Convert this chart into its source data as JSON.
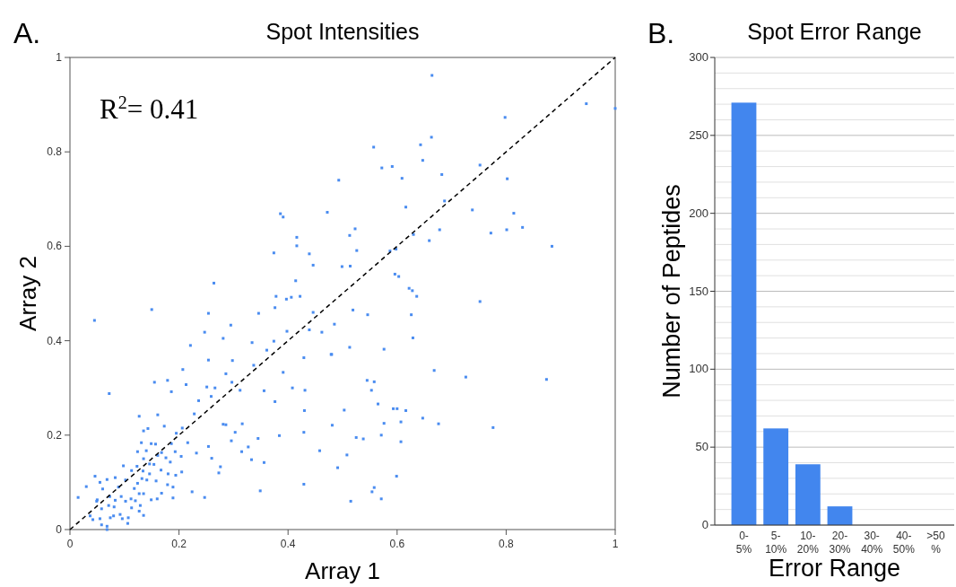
{
  "chart_data": [
    {
      "type": "scatter",
      "title": "Spot Intensities",
      "xlabel": "Array 1",
      "ylabel": "Array 2",
      "annotations": [
        "A.",
        "R$^{2}$= 0.41"
      ],
      "xlim": [
        0,
        1
      ],
      "ylim": [
        0,
        1
      ],
      "xticks": [
        0,
        0.2,
        0.4,
        0.6,
        0.8,
        1
      ],
      "yticks": [
        0,
        0.2,
        0.4,
        0.6,
        0.8,
        1
      ],
      "grid": false,
      "series": [
        {
          "type": "scatter",
          "marker": "square",
          "color": "#4a8cf0",
          "x": [
            0.664,
            0.947,
            1.0,
            0.798,
            0.663,
            0.557,
            0.643,
            0.647,
            0.572,
            0.591,
            0.493,
            0.609,
            0.752,
            0.682,
            0.802,
            0.616,
            0.687,
            0.738,
            0.814,
            0.386,
            0.391,
            0.472,
            0.416,
            0.416,
            0.523,
            0.513,
            0.63,
            0.678,
            0.772,
            0.801,
            0.83,
            0.659,
            0.374,
            0.439,
            0.526,
            0.587,
            0.598,
            0.884,
            0.446,
            0.499,
            0.514,
            0.603,
            0.414,
            0.264,
            0.628,
            0.596,
            0.622,
            0.636,
            0.752,
            0.519,
            0.546,
            0.626,
            0.485,
            0.629,
            0.513,
            0.576,
            0.668,
            0.726,
            0.874,
            0.545,
            0.558,
            0.553,
            0.565,
            0.503,
            0.593,
            0.6,
            0.616,
            0.647,
            0.576,
            0.607,
            0.676,
            0.776,
            0.481,
            0.525,
            0.538,
            0.571,
            0.607,
            0.508,
            0.491,
            0.599,
            0.558,
            0.554,
            0.571,
            0.515,
            0.48,
            0.045,
            0.15,
            0.378,
            0.397,
            0.406,
            0.422,
            0.376,
            0.346,
            0.254,
            0.446,
            0.295,
            0.247,
            0.281,
            0.221,
            0.334,
            0.374,
            0.398,
            0.439,
            0.462,
            0.254,
            0.298,
            0.337,
            0.361,
            0.429,
            0.479,
            0.207,
            0.286,
            0.155,
            0.179,
            0.213,
            0.186,
            0.072,
            0.251,
            0.266,
            0.297,
            0.312,
            0.356,
            0.376,
            0.391,
            0.408,
            0.431,
            0.161,
            0.127,
            0.228,
            0.259,
            0.236,
            0.281,
            0.316,
            0.384,
            0.429,
            0.43,
            0.458,
            0.429,
            0.349,
            0.247,
            0.224,
            0.189,
            0.273,
            0.276,
            0.26,
            0.254,
            0.232,
            0.296,
            0.315,
            0.327,
            0.345,
            0.333,
            0.356,
            0.303,
            0.286,
            0.206,
            0.195,
            0.173,
            0.143,
            0.135,
            0.131,
            0.149,
            0.157,
            0.186,
            0.216,
            0.193,
            0.168,
            0.14,
            0.124,
            0.135,
            0.161,
            0.176,
            0.204,
            0.184,
            0.154,
            0.146,
            0.123,
            0.098,
            0.113,
            0.134,
            0.146,
            0.167,
            0.18,
            0.194,
            0.205,
            0.179,
            0.158,
            0.141,
            0.132,
            0.118,
            0.124,
            0.102,
            0.083,
            0.068,
            0.046,
            0.055,
            0.06,
            0.089,
            0.073,
            0.05,
            0.03,
            0.015,
            0.037,
            0.042,
            0.055,
            0.058,
            0.068,
            0.068,
            0.074,
            0.08,
            0.092,
            0.096,
            0.106,
            0.107,
            0.113,
            0.102,
            0.094,
            0.081,
            0.071,
            0.058,
            0.049,
            0.083,
            0.112,
            0.129,
            0.135,
            0.127,
            0.12,
            0.135,
            0.149,
            0.16,
            0.168,
            0.189,
            0.127
          ],
          "values": [
            0.962,
            0.902,
            0.892,
            0.873,
            0.831,
            0.81,
            0.815,
            0.782,
            0.766,
            0.769,
            0.74,
            0.744,
            0.772,
            0.752,
            0.743,
            0.683,
            0.696,
            0.677,
            0.67,
            0.669,
            0.662,
            0.672,
            0.619,
            0.601,
            0.637,
            0.623,
            0.625,
            0.635,
            0.628,
            0.635,
            0.64,
            0.612,
            0.586,
            0.584,
            0.591,
            0.59,
            0.594,
            0.6,
            0.56,
            0.557,
            0.558,
            0.536,
            0.527,
            0.522,
            0.506,
            0.541,
            0.511,
            0.494,
            0.483,
            0.465,
            0.455,
            0.455,
            0.435,
            0.406,
            0.386,
            0.382,
            0.337,
            0.323,
            0.318,
            0.316,
            0.313,
            0.295,
            0.266,
            0.253,
            0.256,
            0.256,
            0.252,
            0.236,
            0.225,
            0.228,
            0.224,
            0.216,
            0.221,
            0.195,
            0.192,
            0.2,
            0.186,
            0.158,
            0.131,
            0.113,
            0.089,
            0.08,
            0.065,
            0.06,
            0.371,
            0.443,
            0.466,
            0.494,
            0.488,
            0.492,
            0.494,
            0.47,
            0.458,
            0.458,
            0.46,
            0.433,
            0.418,
            0.405,
            0.39,
            0.396,
            0.399,
            0.42,
            0.423,
            0.418,
            0.359,
            0.358,
            0.348,
            0.38,
            0.364,
            0.371,
            0.339,
            0.33,
            0.312,
            0.316,
            0.307,
            0.292,
            0.288,
            0.302,
            0.3,
            0.312,
            0.295,
            0.294,
            0.271,
            0.333,
            0.3,
            0.295,
            0.243,
            0.24,
            0.245,
            0.282,
            0.273,
            0.223,
            0.224,
            0.199,
            0.206,
            0.252,
            0.167,
            0.096,
            0.082,
            0.068,
            0.08,
            0.067,
            0.12,
            0.133,
            0.151,
            0.176,
            0.162,
            0.188,
            0.165,
            0.175,
            0.193,
            0.148,
            0.142,
            0.206,
            0.222,
            0.215,
            0.204,
            0.219,
            0.214,
            0.209,
            0.184,
            0.182,
            0.181,
            0.182,
            0.184,
            0.165,
            0.163,
            0.167,
            0.165,
            0.15,
            0.157,
            0.152,
            0.155,
            0.143,
            0.138,
            0.139,
            0.134,
            0.135,
            0.125,
            0.124,
            0.118,
            0.126,
            0.118,
            0.115,
            0.122,
            0.095,
            0.103,
            0.105,
            0.108,
            0.087,
            0.098,
            0.105,
            0.11,
            0.106,
            0.113,
            0.1,
            0.086,
            0.09,
            0.07,
            0.063,
            0.091,
            0.068,
            0.029,
            0.021,
            0.023,
            0.01,
            0.0,
            0.007,
            0.025,
            0.029,
            0.032,
            0.023,
            0.013,
            0.025,
            0.046,
            0.06,
            0.07,
            0.048,
            0.051,
            0.044,
            0.06,
            0.062,
            0.065,
            0.051,
            0.03,
            0.039,
            0.061,
            0.076,
            0.063,
            0.065,
            0.077,
            0.09,
            0.076
          ]
        },
        {
          "type": "line",
          "color": "#000000",
          "line_style": "dashed",
          "x": [
            0,
            1
          ],
          "values": [
            0,
            1
          ]
        }
      ]
    },
    {
      "type": "bar",
      "title": "Spot Error Range",
      "xlabel": "Error Range",
      "ylabel": "Number of Peptides",
      "annotations": [
        "B."
      ],
      "categories": [
        "0-5%",
        "5-10%",
        "10-20%",
        "20-30%",
        "30-40%",
        "40-50%",
        ">50%"
      ],
      "values": [
        271,
        62,
        39,
        12,
        0,
        0,
        0
      ],
      "color": "#4286ee",
      "ylim": [
        0,
        300
      ],
      "grid": "y",
      "yticks": [
        0,
        {
          "value": 10,
          "label": null
        },
        {
          "value": 20,
          "label": null
        },
        {
          "value": 30,
          "label": null
        },
        {
          "value": 40,
          "label": null
        },
        50,
        {
          "value": 60,
          "label": null
        },
        {
          "value": 70,
          "label": null
        },
        {
          "value": 80,
          "label": null
        },
        {
          "value": 90,
          "label": null
        },
        100,
        {
          "value": 110,
          "label": null
        },
        {
          "value": 120,
          "label": null
        },
        {
          "value": 130,
          "label": null
        },
        {
          "value": 140,
          "label": null
        },
        150,
        {
          "value": 160,
          "label": null
        },
        {
          "value": 170,
          "label": null
        },
        {
          "value": 180,
          "label": null
        },
        {
          "value": 190,
          "label": null
        },
        200,
        {
          "value": 210,
          "label": null
        },
        {
          "value": 220,
          "label": null
        },
        {
          "value": 230,
          "label": null
        },
        {
          "value": 240,
          "label": null
        },
        250,
        {
          "value": 260,
          "label": null
        },
        {
          "value": 270,
          "label": null
        },
        {
          "value": 280,
          "label": null
        },
        {
          "value": 290,
          "label": null
        },
        300
      ]
    }
  ]
}
